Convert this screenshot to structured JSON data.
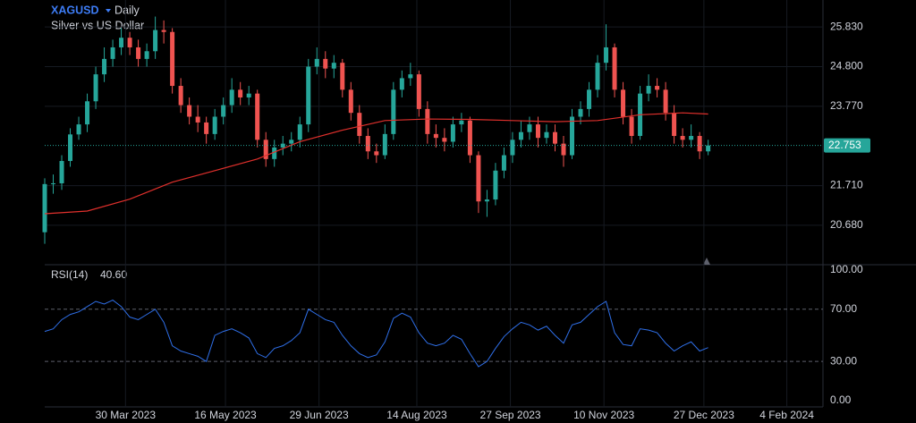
{
  "chart_data": {
    "type": "candlestick",
    "symbol": "XAGUSD",
    "interval": "Daily",
    "subtitle": "Silver vs US Dollar",
    "x": [
      "2023-02-20",
      "2023-02-24",
      "2023-02-28",
      "2023-03-04",
      "2023-03-08",
      "2023-03-12",
      "2023-03-16",
      "2023-03-20",
      "2023-03-24",
      "2023-03-28",
      "2023-04-01",
      "2023-04-05",
      "2023-04-09",
      "2023-04-13",
      "2023-04-17",
      "2023-04-21",
      "2023-04-25",
      "2023-04-29",
      "2023-05-03",
      "2023-05-07",
      "2023-05-11",
      "2023-05-15",
      "2023-05-19",
      "2023-05-23",
      "2023-05-27",
      "2023-05-31",
      "2023-06-04",
      "2023-06-08",
      "2023-06-12",
      "2023-06-16",
      "2023-06-20",
      "2023-06-24",
      "2023-06-28",
      "2023-07-02",
      "2023-07-06",
      "2023-07-10",
      "2023-07-14",
      "2023-07-18",
      "2023-07-22",
      "2023-07-26",
      "2023-07-30",
      "2023-08-03",
      "2023-08-07",
      "2023-08-11",
      "2023-08-15",
      "2023-08-19",
      "2023-08-23",
      "2023-08-27",
      "2023-08-31",
      "2023-09-04",
      "2023-09-08",
      "2023-09-12",
      "2023-09-16",
      "2023-09-20",
      "2023-09-24",
      "2023-09-28",
      "2023-10-02",
      "2023-10-06",
      "2023-10-10",
      "2023-10-14",
      "2023-10-18",
      "2023-10-22",
      "2023-10-26",
      "2023-10-30",
      "2023-11-03",
      "2023-11-07",
      "2023-11-11",
      "2023-11-15",
      "2023-11-19",
      "2023-11-23",
      "2023-11-27",
      "2023-12-01",
      "2023-12-05",
      "2023-12-09",
      "2023-12-13",
      "2023-12-17",
      "2023-12-21",
      "2023-12-25",
      "2023-12-29"
    ],
    "open": [
      20.5,
      21.75,
      21.77,
      22.35,
      23.04,
      23.3,
      23.9,
      24.6,
      25.0,
      25.3,
      25.55,
      25.3,
      25.0,
      25.2,
      25.75,
      25.7,
      24.3,
      23.8,
      23.5,
      23.35,
      23.05,
      23.5,
      23.8,
      24.2,
      24.0,
      24.1,
      22.9,
      22.4,
      22.7,
      22.8,
      22.9,
      23.3,
      24.8,
      25.0,
      24.75,
      24.9,
      24.2,
      23.6,
      23.0,
      22.6,
      22.5,
      23.05,
      24.2,
      24.5,
      24.6,
      23.7,
      23.05,
      22.95,
      22.85,
      23.3,
      23.4,
      22.5,
      21.3,
      21.35,
      22.1,
      22.5,
      22.9,
      23.1,
      23.3,
      22.95,
      23.1,
      22.8,
      22.5,
      23.5,
      23.7,
      24.2,
      24.9,
      25.3,
      24.2,
      23.5,
      23.0,
      24.1,
      24.3,
      24.2,
      23.6,
      23.0,
      22.9,
      23.0,
      22.6
    ],
    "high": [
      21.9,
      22.0,
      22.5,
      23.2,
      23.5,
      24.1,
      24.8,
      25.3,
      25.5,
      25.8,
      25.7,
      25.5,
      25.4,
      26.1,
      26.0,
      25.8,
      24.5,
      24.0,
      23.8,
      23.5,
      23.7,
      24.0,
      24.5,
      24.4,
      24.3,
      24.2,
      23.1,
      22.9,
      23.0,
      23.1,
      23.5,
      25.0,
      25.3,
      25.2,
      25.1,
      25.0,
      24.4,
      23.8,
      23.2,
      22.8,
      23.3,
      24.4,
      24.7,
      24.9,
      24.7,
      23.9,
      23.3,
      23.2,
      23.5,
      23.6,
      23.5,
      22.6,
      21.6,
      22.3,
      22.7,
      23.1,
      23.4,
      23.5,
      23.5,
      23.3,
      23.3,
      23.0,
      23.7,
      23.9,
      24.4,
      25.1,
      25.9,
      25.4,
      24.4,
      23.7,
      24.3,
      24.6,
      24.5,
      24.4,
      23.8,
      23.2,
      23.3,
      23.1,
      22.9
    ],
    "low": [
      20.2,
      21.5,
      21.6,
      22.2,
      22.9,
      23.1,
      23.7,
      24.4,
      24.8,
      25.1,
      25.1,
      24.8,
      24.8,
      25.0,
      25.4,
      24.1,
      23.6,
      23.3,
      23.1,
      22.8,
      22.9,
      23.3,
      23.6,
      23.8,
      23.8,
      22.7,
      22.2,
      22.2,
      22.5,
      22.6,
      22.7,
      23.1,
      24.6,
      24.5,
      24.5,
      24.0,
      23.4,
      22.8,
      22.4,
      22.3,
      22.4,
      22.9,
      24.0,
      24.3,
      23.5,
      22.8,
      22.7,
      22.6,
      22.7,
      23.1,
      22.3,
      21.0,
      20.9,
      21.2,
      21.9,
      22.3,
      22.7,
      22.9,
      22.7,
      22.8,
      22.6,
      22.2,
      22.4,
      23.3,
      23.5,
      24.0,
      24.7,
      24.0,
      23.3,
      22.8,
      22.9,
      23.9,
      24.0,
      23.4,
      22.8,
      22.7,
      22.7,
      22.4,
      22.5
    ],
    "close": [
      21.75,
      21.77,
      22.35,
      23.04,
      23.3,
      23.9,
      24.6,
      25.0,
      25.3,
      25.55,
      25.3,
      25.0,
      25.2,
      25.75,
      25.7,
      24.3,
      23.8,
      23.5,
      23.35,
      23.05,
      23.5,
      23.8,
      24.2,
      24.0,
      24.1,
      22.9,
      22.4,
      22.7,
      22.8,
      22.9,
      23.3,
      24.8,
      25.0,
      24.75,
      24.9,
      24.2,
      23.6,
      23.0,
      22.6,
      22.5,
      23.05,
      24.2,
      24.5,
      24.6,
      23.7,
      23.05,
      22.95,
      22.85,
      23.3,
      23.4,
      22.5,
      21.3,
      21.35,
      22.1,
      22.5,
      22.9,
      23.1,
      23.3,
      22.95,
      23.1,
      22.8,
      22.5,
      23.5,
      23.7,
      24.2,
      24.9,
      25.3,
      24.2,
      23.5,
      23.0,
      24.1,
      24.3,
      24.2,
      23.6,
      23.0,
      22.9,
      23.0,
      22.6,
      22.753
    ],
    "up_color": "#26a69a",
    "down_color": "#ef5350",
    "ma": {
      "color": "#e0302c",
      "x": [
        "2023-02-20",
        "2023-03-12",
        "2023-04-01",
        "2023-04-21",
        "2023-05-11",
        "2023-05-31",
        "2023-06-20",
        "2023-07-10",
        "2023-07-30",
        "2023-08-19",
        "2023-09-08",
        "2023-09-28",
        "2023-10-18",
        "2023-11-07",
        "2023-11-27",
        "2023-12-17",
        "2023-12-29"
      ],
      "values": [
        20.98,
        21.05,
        21.36,
        21.8,
        22.1,
        22.4,
        22.85,
        23.15,
        23.4,
        23.44,
        23.43,
        23.4,
        23.37,
        23.4,
        23.55,
        23.6,
        23.57
      ]
    },
    "last_price": 22.753,
    "xlim": [
      "2023-02-20",
      "2024-02-21"
    ],
    "xticks": [
      {
        "value": "2023-03-30",
        "label": "30 Mar 2023"
      },
      {
        "value": "2023-05-16",
        "label": "16 May 2023"
      },
      {
        "value": "2023-06-29",
        "label": "29 Jun 2023"
      },
      {
        "value": "2023-08-14",
        "label": "14 Aug 2023"
      },
      {
        "value": "2023-09-27",
        "label": "27 Sep 2023"
      },
      {
        "value": "2023-11-10",
        "label": "10 Nov 2023"
      },
      {
        "value": "2023-12-27",
        "label": "27 Dec 2023"
      },
      {
        "value": "2024-02-04",
        "label": "4 Feb 2024"
      }
    ],
    "ylim": [
      19.68,
      26.53
    ],
    "yticks": [
      {
        "value": 25.83,
        "label": "25.830"
      },
      {
        "value": 24.8,
        "label": "24.800"
      },
      {
        "value": 23.77,
        "label": "23.770"
      },
      {
        "value": 21.71,
        "label": "21.710"
      },
      {
        "value": 20.68,
        "label": "20.680"
      }
    ],
    "grid": true,
    "rsi": {
      "label": "RSI(14)",
      "last": {
        "value": 40.6,
        "label": "40.60"
      },
      "color": "#2f6fe8",
      "values": [
        53,
        55,
        62,
        66,
        68,
        72,
        76,
        74,
        77,
        72,
        64,
        62,
        66,
        70,
        60,
        42,
        38,
        36,
        34,
        30,
        50,
        53,
        55,
        52,
        48,
        36,
        33,
        40,
        42,
        46,
        52,
        70,
        66,
        62,
        60,
        50,
        42,
        36,
        33,
        35,
        45,
        63,
        67,
        64,
        52,
        44,
        42,
        44,
        50,
        47,
        36,
        26,
        30,
        40,
        49,
        55,
        60,
        58,
        54,
        57,
        50,
        44,
        58,
        60,
        66,
        72,
        76,
        52,
        43,
        42,
        55,
        54,
        52,
        44,
        38,
        42,
        45,
        38,
        40.6
      ],
      "ylim": [
        -4.8,
        103.4
      ],
      "yticks": [
        {
          "value": 100,
          "label": "100.00"
        },
        {
          "value": 70,
          "label": "70.00"
        },
        {
          "value": 30,
          "label": "30.00"
        },
        {
          "value": 0,
          "label": "0.00"
        }
      ],
      "levels": [
        70,
        30
      ]
    }
  }
}
